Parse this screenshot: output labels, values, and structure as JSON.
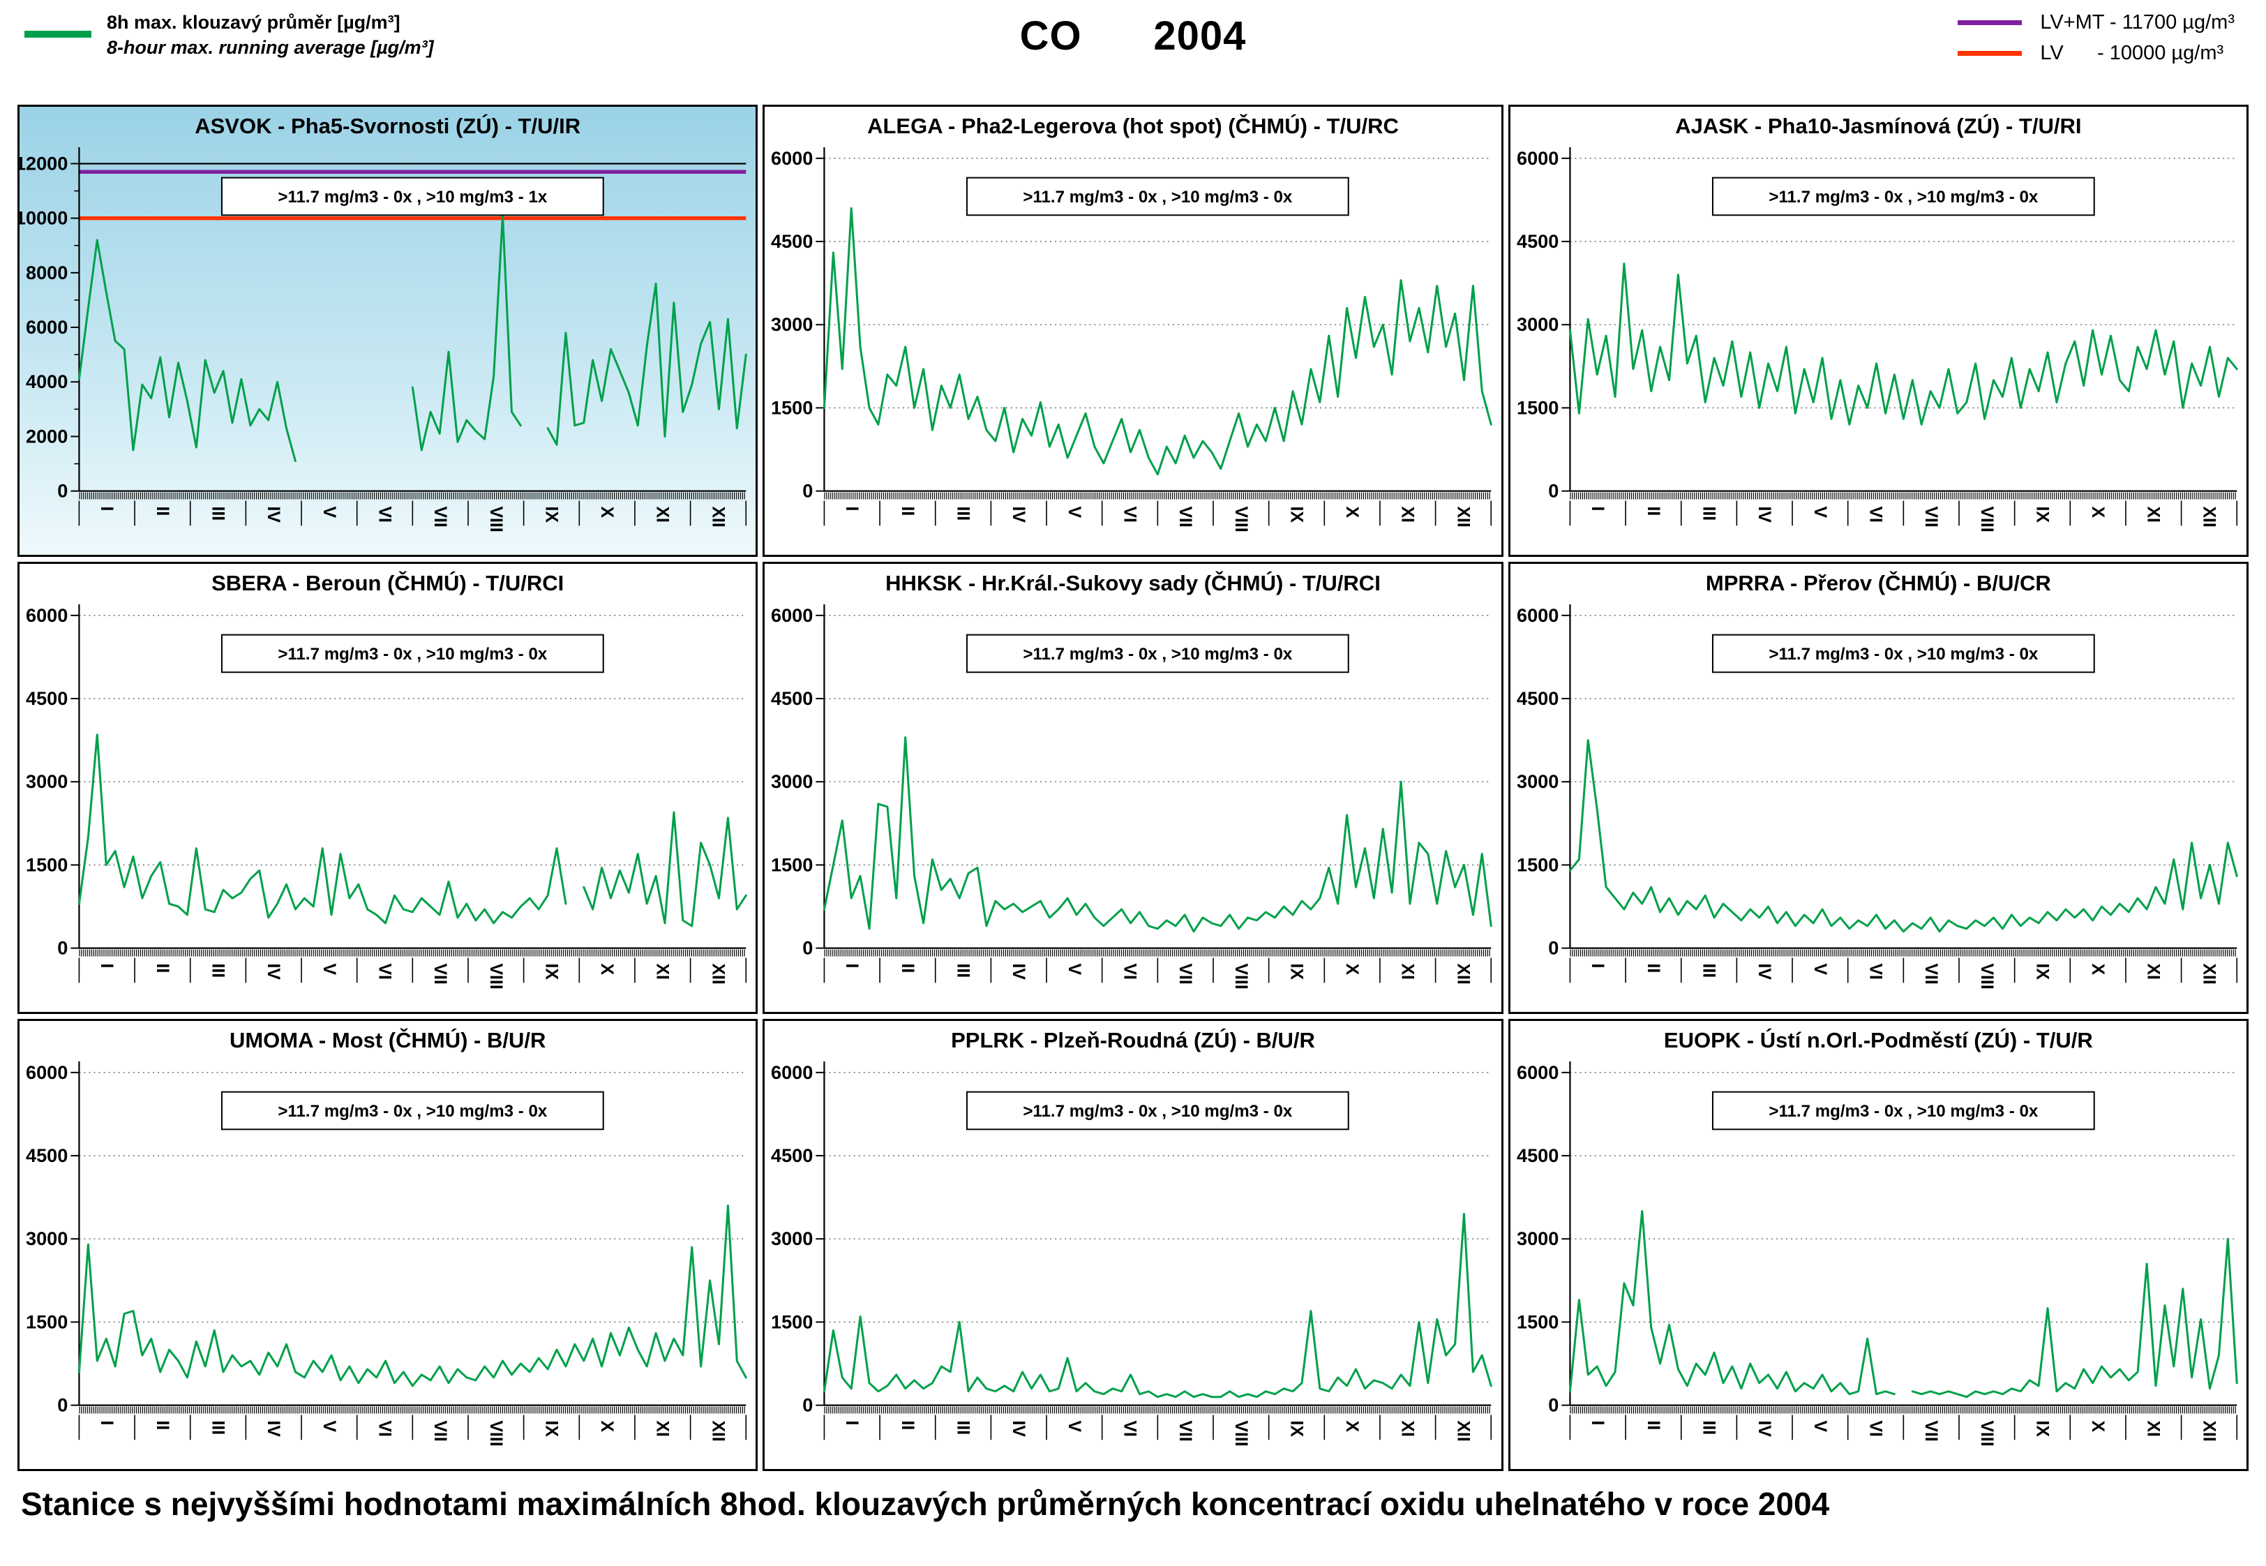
{
  "header": {
    "legend_left": {
      "swatch_color": "#00A04A",
      "line1": "8h max. klouzavý průměr [µg/m³]",
      "line2": "8-hour max. running average [µg/m³]"
    },
    "title": "CO      2004",
    "legend_right": [
      {
        "label": "LV+MT - 11700 µg/m³",
        "color": "#8020A0"
      },
      {
        "label": "LV      - 10000 µg/m³",
        "color": "#FF3300"
      }
    ]
  },
  "caption": "Stanice s nejvyššími hodnotami maximálních 8hod. klouzavých průměrných koncentrací oxidu uhelnatého v roce 2004",
  "months": [
    "I",
    "II",
    "III",
    "IV",
    "V",
    "VI",
    "VII",
    "VIII",
    "IX",
    "X",
    "XI",
    "XII"
  ],
  "series_color": "#00A04A",
  "chart_data": [
    {
      "type": "line",
      "title": "ASVOK - Pha5-Svornosti (ZÚ) - T/U/IR",
      "annotation": ">11.7 mg/m3 - 0x ,  >10 mg/m3 - 1x",
      "ylim": [
        0,
        12500
      ],
      "yticks": [
        0,
        2000,
        4000,
        6000,
        8000,
        10000,
        12000
      ],
      "grid": "none",
      "background": "blue-gradient",
      "top_line": 12000,
      "ref_lines": [
        {
          "name": "LV+MT",
          "value": 11700,
          "color": "#8020A0"
        },
        {
          "name": "LV",
          "value": 10000,
          "color": "#FF3300"
        }
      ],
      "values": [
        4100,
        6700,
        9200,
        7300,
        5500,
        5200,
        1500,
        3900,
        3400,
        4900,
        2700,
        4700,
        3300,
        1600,
        4800,
        3600,
        4400,
        2500,
        4100,
        2400,
        3000,
        2600,
        4000,
        2300,
        1100,
        null,
        null,
        null,
        null,
        null,
        null,
        null,
        null,
        null,
        null,
        null,
        null,
        3800,
        1500,
        2900,
        2100,
        5100,
        1800,
        2600,
        2200,
        1900,
        4200,
        10100,
        2900,
        2400,
        null,
        null,
        2300,
        1700,
        5800,
        2400,
        2500,
        4800,
        3300,
        5200,
        4400,
        3600,
        2400,
        5300,
        7600,
        2000,
        6900,
        2900,
        3900,
        5400,
        6200,
        3000,
        6300,
        2300,
        5000
      ]
    },
    {
      "type": "line",
      "title": "ALEGA - Pha2-Legerova (hot spot) (ČHMÚ) - T/U/RC",
      "annotation": ">11.7 mg/m3 - 0x ,  >10 mg/m3 - 0x",
      "ylim": [
        0,
        6150
      ],
      "yticks": [
        0,
        1500,
        3000,
        4500,
        6000
      ],
      "grid": "dotted",
      "background": "white",
      "ref_lines": [],
      "values": [
        1500,
        4300,
        2200,
        5100,
        2600,
        1500,
        1200,
        2100,
        1900,
        2600,
        1500,
        2200,
        1100,
        1900,
        1500,
        2100,
        1300,
        1700,
        1100,
        900,
        1500,
        700,
        1300,
        1000,
        1600,
        800,
        1200,
        600,
        1000,
        1400,
        800,
        500,
        900,
        1300,
        700,
        1100,
        600,
        300,
        800,
        500,
        1000,
        600,
        900,
        700,
        400,
        900,
        1400,
        800,
        1200,
        900,
        1500,
        900,
        1800,
        1200,
        2200,
        1600,
        2800,
        1700,
        3300,
        2400,
        3500,
        2600,
        3000,
        2100,
        3800,
        2700,
        3300,
        2500,
        3700,
        2600,
        3200,
        2000,
        3700,
        1800,
        1200
      ]
    },
    {
      "type": "line",
      "title": "AJASK - Pha10-Jasmínová (ZÚ) - T/U/RI",
      "annotation": ">11.7 mg/m3 - 0x ,  >10 mg/m3 - 0x",
      "ylim": [
        0,
        6150
      ],
      "yticks": [
        0,
        1500,
        3000,
        4500,
        6000
      ],
      "grid": "dotted",
      "background": "white",
      "ref_lines": [],
      "values": [
        2900,
        1400,
        3100,
        2100,
        2800,
        1700,
        4100,
        2200,
        2900,
        1800,
        2600,
        2000,
        3900,
        2300,
        2800,
        1600,
        2400,
        1900,
        2700,
        1700,
        2500,
        1500,
        2300,
        1800,
        2600,
        1400,
        2200,
        1600,
        2400,
        1300,
        2000,
        1200,
        1900,
        1500,
        2300,
        1400,
        2100,
        1300,
        2000,
        1200,
        1800,
        1500,
        2200,
        1400,
        1600,
        2300,
        1300,
        2000,
        1700,
        2400,
        1500,
        2200,
        1800,
        2500,
        1600,
        2300,
        2700,
        1900,
        2900,
        2100,
        2800,
        2000,
        1800,
        2600,
        2200,
        2900,
        2100,
        2700,
        1500,
        2300,
        1900,
        2600,
        1700,
        2400,
        2200
      ]
    },
    {
      "type": "line",
      "title": "SBERA - Beroun (ČHMÚ) - T/U/RCI",
      "annotation": ">11.7 mg/m3 - 0x ,  >10 mg/m3 - 0x",
      "ylim": [
        0,
        6150
      ],
      "yticks": [
        0,
        1500,
        3000,
        4500,
        6000
      ],
      "grid": "dotted",
      "background": "white",
      "ref_lines": [],
      "values": [
        800,
        2000,
        3850,
        1500,
        1750,
        1100,
        1650,
        900,
        1300,
        1550,
        800,
        750,
        600,
        1800,
        700,
        650,
        1050,
        900,
        1000,
        1250,
        1400,
        550,
        800,
        1150,
        700,
        900,
        750,
        1800,
        600,
        1700,
        900,
        1150,
        700,
        600,
        450,
        950,
        700,
        650,
        900,
        750,
        600,
        1200,
        550,
        800,
        500,
        700,
        450,
        650,
        550,
        750,
        900,
        700,
        950,
        1800,
        800,
        null,
        1100,
        700,
        1450,
        900,
        1400,
        1000,
        1700,
        800,
        1300,
        450,
        2450,
        500,
        400,
        1900,
        1500,
        900,
        2350,
        700,
        950
      ]
    },
    {
      "type": "line",
      "title": "HHKSK - Hr.Král.-Sukovy sady (ČHMÚ) - T/U/RCI",
      "annotation": ">11.7 mg/m3 - 0x ,  >10 mg/m3 - 0x",
      "ylim": [
        0,
        6150
      ],
      "yticks": [
        0,
        1500,
        3000,
        4500,
        6000
      ],
      "grid": "dotted",
      "background": "white",
      "ref_lines": [],
      "values": [
        700,
        1500,
        2300,
        900,
        1300,
        350,
        2600,
        2550,
        900,
        3800,
        1300,
        450,
        1600,
        1050,
        1250,
        900,
        1350,
        1450,
        400,
        850,
        700,
        800,
        650,
        750,
        850,
        550,
        700,
        900,
        600,
        800,
        550,
        400,
        550,
        700,
        450,
        650,
        400,
        350,
        500,
        400,
        600,
        300,
        550,
        450,
        400,
        600,
        350,
        550,
        500,
        650,
        550,
        750,
        600,
        850,
        700,
        900,
        1450,
        800,
        2400,
        1100,
        1800,
        900,
        2150,
        1000,
        3000,
        800,
        1900,
        1700,
        800,
        1750,
        1100,
        1500,
        600,
        1700,
        400
      ]
    },
    {
      "type": "line",
      "title": "MPRRA - Přerov (ČHMÚ) - B/U/CR",
      "annotation": ">11.7 mg/m3 - 0x ,  >10 mg/m3 - 0x",
      "ylim": [
        0,
        6150
      ],
      "yticks": [
        0,
        1500,
        3000,
        4500,
        6000
      ],
      "grid": "dotted",
      "background": "white",
      "ref_lines": [],
      "values": [
        1400,
        1600,
        3750,
        2500,
        1100,
        900,
        700,
        1000,
        800,
        1100,
        650,
        900,
        600,
        850,
        700,
        950,
        550,
        800,
        650,
        500,
        700,
        550,
        750,
        450,
        650,
        400,
        600,
        450,
        700,
        400,
        550,
        350,
        500,
        400,
        600,
        350,
        500,
        300,
        450,
        350,
        550,
        300,
        500,
        400,
        350,
        500,
        400,
        550,
        350,
        600,
        400,
        550,
        450,
        650,
        500,
        700,
        550,
        700,
        500,
        750,
        600,
        800,
        650,
        900,
        700,
        1100,
        800,
        1600,
        700,
        1900,
        900,
        1500,
        800,
        1900,
        1300
      ]
    },
    {
      "type": "line",
      "title": "UMOMA - Most (ČHMÚ) - B/U/R",
      "annotation": ">11.7 mg/m3 - 0x ,  >10 mg/m3 - 0x",
      "ylim": [
        0,
        6150
      ],
      "yticks": [
        0,
        1500,
        3000,
        4500,
        6000
      ],
      "grid": "dotted",
      "background": "white",
      "ref_lines": [],
      "values": [
        600,
        2900,
        800,
        1200,
        700,
        1650,
        1700,
        900,
        1200,
        600,
        1000,
        800,
        500,
        1150,
        700,
        1350,
        600,
        900,
        700,
        800,
        550,
        950,
        700,
        1100,
        600,
        500,
        800,
        600,
        900,
        450,
        700,
        400,
        650,
        500,
        800,
        400,
        600,
        350,
        550,
        450,
        700,
        400,
        650,
        500,
        450,
        700,
        500,
        800,
        550,
        750,
        600,
        850,
        650,
        1000,
        700,
        1100,
        800,
        1200,
        700,
        1300,
        900,
        1400,
        1000,
        700,
        1300,
        800,
        1200,
        900,
        2850,
        700,
        2250,
        1100,
        3600,
        800,
        500
      ]
    },
    {
      "type": "line",
      "title": "PPLRK - Plzeň-Roudná (ZÚ) - B/U/R",
      "annotation": ">11.7 mg/m3 - 0x ,  >10 mg/m3 - 0x",
      "ylim": [
        0,
        6150
      ],
      "yticks": [
        0,
        1500,
        3000,
        4500,
        6000
      ],
      "grid": "dotted",
      "background": "white",
      "ref_lines": [],
      "values": [
        250,
        1350,
        500,
        300,
        1600,
        400,
        250,
        350,
        550,
        300,
        450,
        300,
        400,
        700,
        600,
        1500,
        250,
        500,
        300,
        250,
        350,
        250,
        600,
        300,
        550,
        250,
        300,
        850,
        250,
        400,
        250,
        200,
        300,
        250,
        550,
        200,
        250,
        150,
        200,
        150,
        250,
        150,
        200,
        150,
        150,
        250,
        150,
        200,
        150,
        250,
        200,
        300,
        250,
        400,
        1700,
        300,
        250,
        500,
        350,
        650,
        300,
        450,
        400,
        300,
        550,
        350,
        1500,
        400,
        1550,
        900,
        1100,
        3450,
        600,
        900,
        350
      ]
    },
    {
      "type": "line",
      "title": "EUOPK - Ústí n.Orl.-Podměstí (ZÚ) - T/U/R",
      "annotation": ">11.7 mg/m3 - 0x ,  >10 mg/m3 - 0x",
      "ylim": [
        0,
        6150
      ],
      "yticks": [
        0,
        1500,
        3000,
        4500,
        6000
      ],
      "grid": "dotted",
      "background": "white",
      "ref_lines": [],
      "values": [
        250,
        1900,
        550,
        700,
        350,
        600,
        2200,
        1800,
        3500,
        1400,
        750,
        1450,
        650,
        350,
        750,
        550,
        950,
        400,
        700,
        300,
        750,
        400,
        550,
        300,
        600,
        250,
        400,
        300,
        550,
        250,
        400,
        200,
        250,
        1200,
        200,
        250,
        200,
        null,
        250,
        200,
        250,
        200,
        250,
        200,
        150,
        250,
        200,
        250,
        200,
        300,
        250,
        450,
        350,
        1750,
        250,
        400,
        300,
        650,
        400,
        700,
        500,
        650,
        450,
        600,
        2550,
        350,
        1800,
        700,
        2100,
        500,
        1550,
        300,
        900,
        3000,
        400
      ]
    }
  ]
}
